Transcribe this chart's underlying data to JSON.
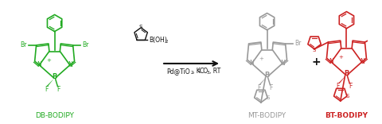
{
  "bg_color": "#ffffff",
  "green_color": "#22aa22",
  "gray_color": "#999999",
  "red_color": "#cc2222",
  "black_color": "#111111",
  "label_db": "DB-BODIPY",
  "label_mt": "MT-BODIPY",
  "label_bt": "BT-BODIPY",
  "figsize": [
    4.8,
    1.56
  ],
  "dpi": 100
}
